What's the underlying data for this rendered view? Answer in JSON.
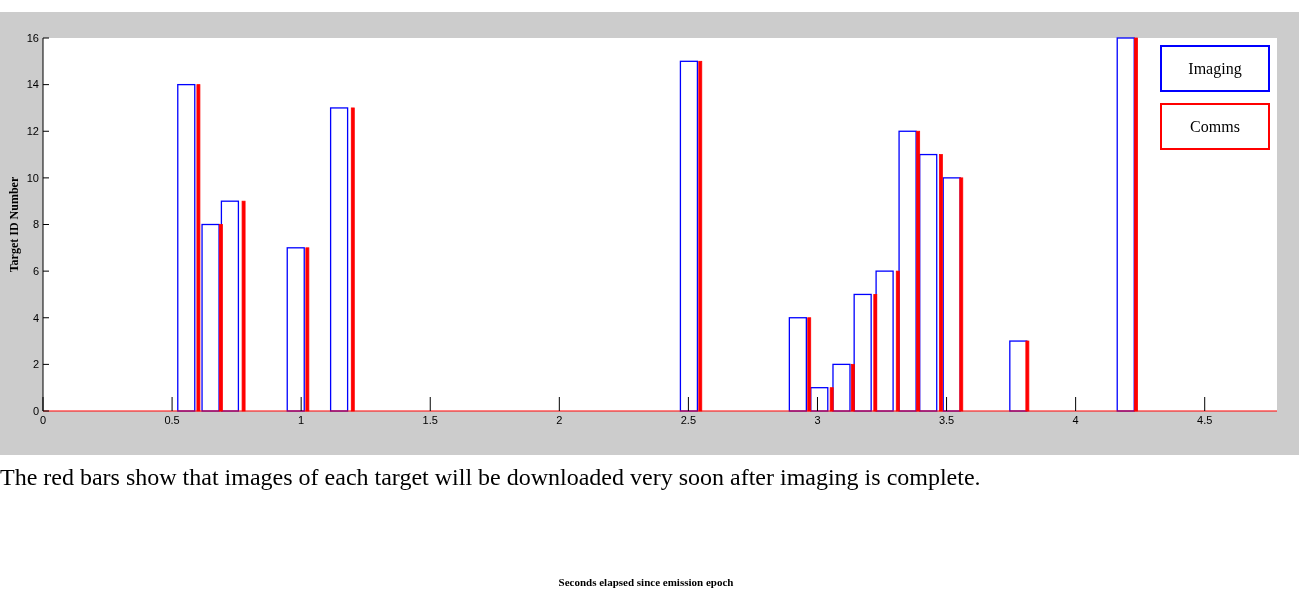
{
  "chart_data": {
    "type": "bar",
    "ylabel": "Target ID Number",
    "series": [
      {
        "name": "Imaging",
        "color": "#0000ff",
        "x": [
          0.555,
          0.649,
          0.724,
          0.979,
          1.147,
          2.502,
          2.924,
          3.007,
          3.093,
          3.175,
          3.26,
          3.349,
          3.429,
          3.52,
          3.778,
          4.194
        ],
        "values": [
          14,
          8,
          9,
          7,
          13,
          15,
          4,
          1,
          2,
          5,
          6,
          12,
          11,
          10,
          3,
          16
        ]
      },
      {
        "name": "Comms",
        "color": "#ff0000",
        "x": [
          0.602,
          0.689,
          0.777,
          1.024,
          1.2,
          2.546,
          2.968,
          3.055,
          3.137,
          3.224,
          3.311,
          3.39,
          3.478,
          3.557,
          3.813,
          4.234
        ],
        "values": [
          14,
          8,
          9,
          7,
          13,
          15,
          4,
          1,
          2,
          5,
          6,
          12,
          11,
          10,
          3,
          16
        ]
      }
    ],
    "xlim": [
      0,
      4.78
    ],
    "xticks": [
      0,
      0.5,
      1,
      1.5,
      2,
      2.5,
      3,
      3.5,
      4,
      4.5
    ],
    "ylim": [
      0,
      16
    ],
    "yticks": [
      0,
      2,
      4,
      6,
      8,
      10,
      12,
      14,
      16
    ],
    "legend": "top right",
    "annotations": [
      "The red bars show that images of each target will be downloaded very soon after imaging is complete.",
      "Seconds elapsed since emission epoch"
    ]
  }
}
